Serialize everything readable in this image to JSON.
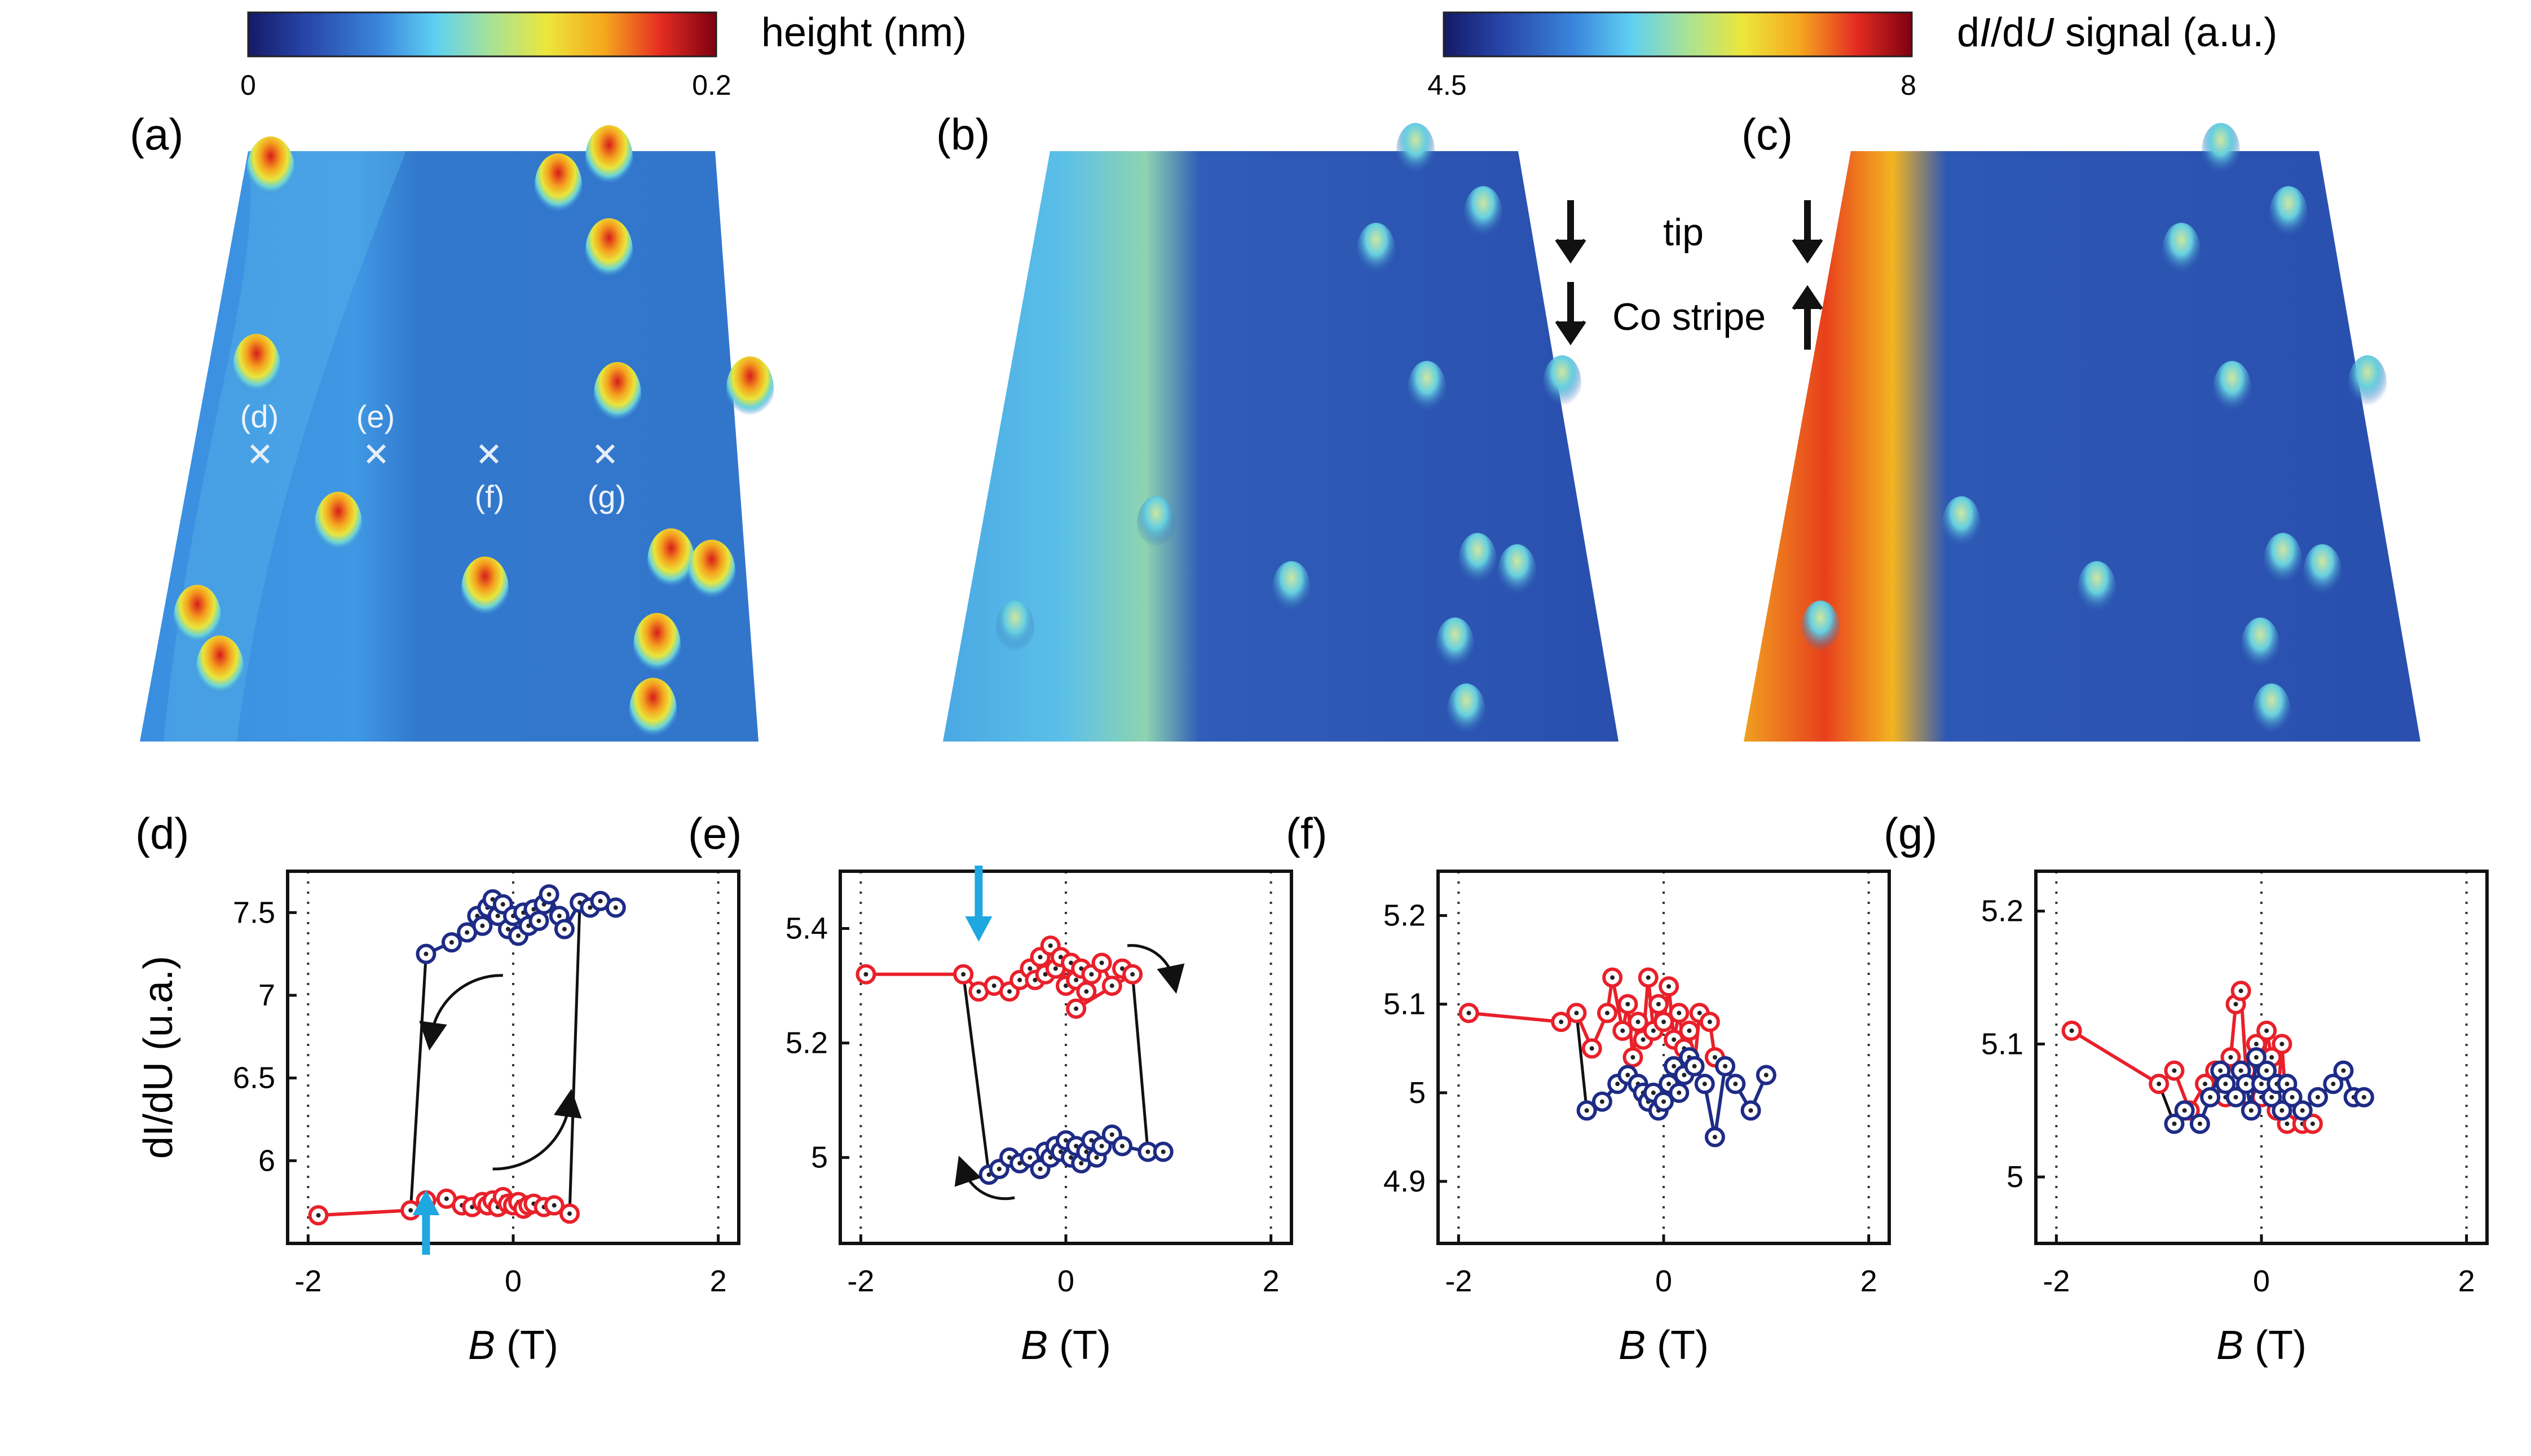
{
  "colorbars": {
    "height": {
      "min": "0",
      "max": "0.2",
      "label": "height (nm)",
      "stops": [
        "#1a1f6e",
        "#2b4fb8",
        "#3d8de0",
        "#5cc8f0",
        "#9fe0a0",
        "#e8e640",
        "#f5b020",
        "#e83020",
        "#8a0010"
      ]
    },
    "didu": {
      "min": "4.5",
      "max": "8",
      "label_pre": "d",
      "label_i": "I",
      "label_mid": "/d",
      "label_u": "U",
      "label_post": " signal (a.u.)",
      "stops": [
        "#1a1f6e",
        "#2b4fb8",
        "#3d8de0",
        "#5cc8f0",
        "#9fe0a0",
        "#e8e640",
        "#f5b020",
        "#e83020",
        "#8a0010"
      ]
    }
  },
  "panels": {
    "a": {
      "letter": "(a)",
      "markers": [
        "(d)",
        "(e)",
        "(f)",
        "(g)"
      ]
    },
    "b": {
      "letter": "(b)"
    },
    "c": {
      "letter": "(c)"
    },
    "legend": {
      "tip": "tip",
      "stripe": "Co stripe"
    }
  },
  "colors": {
    "red": "#e8202a",
    "blue": "#1e2b85",
    "black": "#111111",
    "cyan_arrow": "#1ea7e0",
    "bg_surface": "#2f6fc4"
  },
  "xlabel_b": "B",
  "xlabel_unit": " (T)",
  "ylabel_d": "dI/dU (u.a.)",
  "chart_data": [
    {
      "type": "line",
      "letter": "(d)",
      "xlim": [
        -2.2,
        2.2
      ],
      "ylim": [
        5.5,
        7.75
      ],
      "xticks": [
        -2,
        0,
        2
      ],
      "yticks": [
        6,
        6.5,
        7,
        7.5
      ],
      "ytick_labels": [
        "6",
        "6.5",
        "7",
        "7.5"
      ],
      "grid_x": [
        -2,
        0,
        2
      ],
      "series": [
        {
          "color": "red",
          "points": [
            [
              -1.9,
              5.67
            ],
            [
              -1.0,
              5.7
            ],
            [
              -0.85,
              5.76
            ],
            [
              -0.65,
              5.77
            ],
            [
              -0.5,
              5.73
            ],
            [
              -0.4,
              5.72
            ],
            [
              -0.3,
              5.75
            ],
            [
              -0.25,
              5.73
            ],
            [
              -0.2,
              5.76
            ],
            [
              -0.15,
              5.72
            ],
            [
              -0.1,
              5.78
            ],
            [
              -0.05,
              5.74
            ],
            [
              0,
              5.73
            ],
            [
              0.05,
              5.75
            ],
            [
              0.1,
              5.71
            ],
            [
              0.15,
              5.73
            ],
            [
              0.2,
              5.74
            ],
            [
              0.3,
              5.72
            ],
            [
              0.4,
              5.73
            ],
            [
              0.55,
              5.68
            ]
          ]
        },
        {
          "color": "blue",
          "points": [
            [
              -0.85,
              7.25
            ],
            [
              -0.6,
              7.32
            ],
            [
              -0.45,
              7.38
            ],
            [
              -0.35,
              7.48
            ],
            [
              -0.3,
              7.42
            ],
            [
              -0.25,
              7.53
            ],
            [
              -0.2,
              7.58
            ],
            [
              -0.15,
              7.48
            ],
            [
              -0.1,
              7.55
            ],
            [
              -0.05,
              7.4
            ],
            [
              0,
              7.48
            ],
            [
              0.05,
              7.36
            ],
            [
              0.1,
              7.5
            ],
            [
              0.15,
              7.42
            ],
            [
              0.2,
              7.52
            ],
            [
              0.25,
              7.45
            ],
            [
              0.3,
              7.55
            ],
            [
              0.35,
              7.61
            ],
            [
              0.45,
              7.48
            ],
            [
              0.5,
              7.4
            ],
            [
              0.65,
              7.56
            ],
            [
              0.75,
              7.53
            ],
            [
              0.85,
              7.57
            ],
            [
              1.0,
              7.53
            ]
          ]
        }
      ],
      "connectors": [
        [
          [
            -1.0,
            5.7
          ],
          [
            -0.85,
            7.25
          ]
        ],
        [
          [
            0.55,
            5.68
          ],
          [
            0.65,
            7.56
          ]
        ]
      ],
      "curved_arrows": [
        [
          [
            -0.1,
            7.12
          ],
          [
            -0.8,
            6.75
          ],
          "ccw"
        ],
        [
          [
            -0.2,
            5.95
          ],
          [
            0.55,
            6.35
          ],
          "ccw"
        ]
      ],
      "blue_arrow": {
        "x": -0.85,
        "dir": "up"
      }
    },
    {
      "type": "line",
      "letter": "(e)",
      "xlim": [
        -2.2,
        2.2
      ],
      "ylim": [
        4.85,
        5.5
      ],
      "xticks": [
        -2,
        0,
        2
      ],
      "yticks": [
        5,
        5.2,
        5.4
      ],
      "ytick_labels": [
        "5",
        "5.2",
        "5.4"
      ],
      "grid_x": [
        -2,
        0,
        2
      ],
      "series": [
        {
          "color": "red",
          "points": [
            [
              -1.95,
              5.32
            ],
            [
              -1.0,
              5.32
            ],
            [
              -0.85,
              5.29
            ],
            [
              -0.7,
              5.3
            ],
            [
              -0.55,
              5.29
            ],
            [
              -0.45,
              5.31
            ],
            [
              -0.35,
              5.33
            ],
            [
              -0.3,
              5.31
            ],
            [
              -0.25,
              5.35
            ],
            [
              -0.2,
              5.32
            ],
            [
              -0.15,
              5.37
            ],
            [
              -0.1,
              5.33
            ],
            [
              -0.05,
              5.35
            ],
            [
              0,
              5.3
            ],
            [
              0.05,
              5.34
            ],
            [
              0.1,
              5.31
            ],
            [
              0.15,
              5.33
            ],
            [
              0.2,
              5.29
            ],
            [
              0.25,
              5.32
            ],
            [
              0.35,
              5.34
            ],
            [
              0.45,
              5.3
            ],
            [
              0.55,
              5.33
            ],
            [
              0.65,
              5.32
            ],
            [
              0.1,
              5.26
            ]
          ]
        },
        {
          "color": "blue",
          "points": [
            [
              -0.75,
              4.97
            ],
            [
              -0.65,
              4.98
            ],
            [
              -0.55,
              5.0
            ],
            [
              -0.45,
              4.99
            ],
            [
              -0.35,
              5.0
            ],
            [
              -0.25,
              4.98
            ],
            [
              -0.2,
              5.01
            ],
            [
              -0.15,
              5.0
            ],
            [
              -0.1,
              5.02
            ],
            [
              -0.05,
              5.01
            ],
            [
              0,
              5.03
            ],
            [
              0.05,
              5.0
            ],
            [
              0.1,
              5.02
            ],
            [
              0.15,
              4.99
            ],
            [
              0.2,
              5.01
            ],
            [
              0.25,
              5.03
            ],
            [
              0.3,
              5.0
            ],
            [
              0.35,
              5.02
            ],
            [
              0.45,
              5.04
            ],
            [
              0.55,
              5.02
            ],
            [
              0.8,
              5.01
            ],
            [
              0.95,
              5.01
            ]
          ]
        }
      ],
      "connectors": [
        [
          [
            -1.0,
            5.32
          ],
          [
            -0.75,
            4.97
          ]
        ],
        [
          [
            0.65,
            5.32
          ],
          [
            0.8,
            5.01
          ]
        ]
      ],
      "curved_arrows": [
        [
          [
            0.6,
            5.37
          ],
          [
            1.05,
            5.31
          ],
          "cw"
        ],
        [
          [
            -0.5,
            4.93
          ],
          [
            -1.0,
            4.98
          ],
          "cw"
        ]
      ],
      "blue_arrow": {
        "x": -0.85,
        "dir": "down"
      }
    },
    {
      "type": "line",
      "letter": "(f)",
      "xlim": [
        -2.2,
        2.2
      ],
      "ylim": [
        4.83,
        5.25
      ],
      "xticks": [
        -2,
        0,
        2
      ],
      "yticks": [
        4.9,
        5,
        5.1,
        5.2
      ],
      "ytick_labels": [
        "4.9",
        "5",
        "5.1",
        "5.2"
      ],
      "grid_x": [
        -2,
        0,
        2
      ],
      "series": [
        {
          "color": "red",
          "points": [
            [
              -1.9,
              5.09
            ],
            [
              -1.0,
              5.08
            ],
            [
              -0.85,
              5.09
            ],
            [
              -0.7,
              5.05
            ],
            [
              -0.55,
              5.09
            ],
            [
              -0.5,
              5.13
            ],
            [
              -0.4,
              5.07
            ],
            [
              -0.35,
              5.1
            ],
            [
              -0.3,
              5.04
            ],
            [
              -0.25,
              5.08
            ],
            [
              -0.2,
              5.06
            ],
            [
              -0.15,
              5.13
            ],
            [
              -0.1,
              5.07
            ],
            [
              -0.05,
              5.1
            ],
            [
              0,
              5.08
            ],
            [
              0.05,
              5.12
            ],
            [
              0.1,
              5.06
            ],
            [
              0.15,
              5.09
            ],
            [
              0.2,
              5.05
            ],
            [
              0.25,
              5.07
            ],
            [
              0.3,
              5.03
            ],
            [
              0.35,
              5.09
            ],
            [
              0.45,
              5.08
            ],
            [
              0.5,
              5.04
            ]
          ]
        },
        {
          "color": "blue",
          "points": [
            [
              -0.75,
              4.98
            ],
            [
              -0.6,
              4.99
            ],
            [
              -0.45,
              5.01
            ],
            [
              -0.35,
              5.02
            ],
            [
              -0.25,
              5.01
            ],
            [
              -0.2,
              5.0
            ],
            [
              -0.15,
              4.99
            ],
            [
              -0.1,
              5.0
            ],
            [
              -0.05,
              4.98
            ],
            [
              0,
              4.99
            ],
            [
              0.05,
              5.01
            ],
            [
              0.1,
              5.03
            ],
            [
              0.15,
              5.0
            ],
            [
              0.2,
              5.02
            ],
            [
              0.25,
              5.04
            ],
            [
              0.3,
              5.03
            ],
            [
              0.4,
              5.01
            ],
            [
              0.5,
              4.95
            ],
            [
              0.6,
              5.03
            ],
            [
              0.7,
              5.01
            ],
            [
              0.85,
              4.98
            ],
            [
              1.0,
              5.02
            ]
          ]
        }
      ],
      "connectors": [
        [
          [
            -0.85,
            5.09
          ],
          [
            -0.75,
            4.98
          ]
        ]
      ],
      "curved_arrows": [],
      "blue_arrow": null
    },
    {
      "type": "line",
      "letter": "(g)",
      "xlim": [
        -2.2,
        2.2
      ],
      "ylim": [
        4.95,
        5.23
      ],
      "xticks": [
        -2,
        0,
        2
      ],
      "yticks": [
        5,
        5.1,
        5.2
      ],
      "ytick_labels": [
        "5",
        "5.1",
        "5.2"
      ],
      "grid_x": [
        -2,
        0,
        2
      ],
      "series": [
        {
          "color": "red",
          "points": [
            [
              -1.85,
              5.11
            ],
            [
              -1.0,
              5.07
            ],
            [
              -0.85,
              5.08
            ],
            [
              -0.7,
              5.05
            ],
            [
              -0.55,
              5.07
            ],
            [
              -0.45,
              5.08
            ],
            [
              -0.35,
              5.06
            ],
            [
              -0.3,
              5.09
            ],
            [
              -0.25,
              5.13
            ],
            [
              -0.2,
              5.14
            ],
            [
              -0.15,
              5.08
            ],
            [
              -0.1,
              5.06
            ],
            [
              -0.05,
              5.1
            ],
            [
              0,
              5.06
            ],
            [
              0.05,
              5.11
            ],
            [
              0.1,
              5.09
            ],
            [
              0.15,
              5.05
            ],
            [
              0.2,
              5.1
            ],
            [
              0.25,
              5.04
            ],
            [
              0.3,
              5.06
            ],
            [
              0.35,
              5.05
            ],
            [
              0.4,
              5.04
            ],
            [
              0.5,
              5.04
            ]
          ]
        },
        {
          "color": "blue",
          "points": [
            [
              -0.85,
              5.04
            ],
            [
              -0.75,
              5.05
            ],
            [
              -0.6,
              5.04
            ],
            [
              -0.5,
              5.06
            ],
            [
              -0.4,
              5.08
            ],
            [
              -0.35,
              5.07
            ],
            [
              -0.25,
              5.06
            ],
            [
              -0.2,
              5.08
            ],
            [
              -0.15,
              5.07
            ],
            [
              -0.1,
              5.05
            ],
            [
              -0.05,
              5.09
            ],
            [
              0,
              5.07
            ],
            [
              0.05,
              5.08
            ],
            [
              0.1,
              5.06
            ],
            [
              0.15,
              5.07
            ],
            [
              0.2,
              5.05
            ],
            [
              0.25,
              5.07
            ],
            [
              0.3,
              5.06
            ],
            [
              0.4,
              5.05
            ],
            [
              0.55,
              5.06
            ],
            [
              0.7,
              5.07
            ],
            [
              0.8,
              5.08
            ],
            [
              0.9,
              5.06
            ],
            [
              1.0,
              5.06
            ]
          ]
        }
      ],
      "connectors": [
        [
          [
            -1.0,
            5.07
          ],
          [
            -0.85,
            5.04
          ]
        ]
      ],
      "curved_arrows": [],
      "blue_arrow": null
    }
  ]
}
